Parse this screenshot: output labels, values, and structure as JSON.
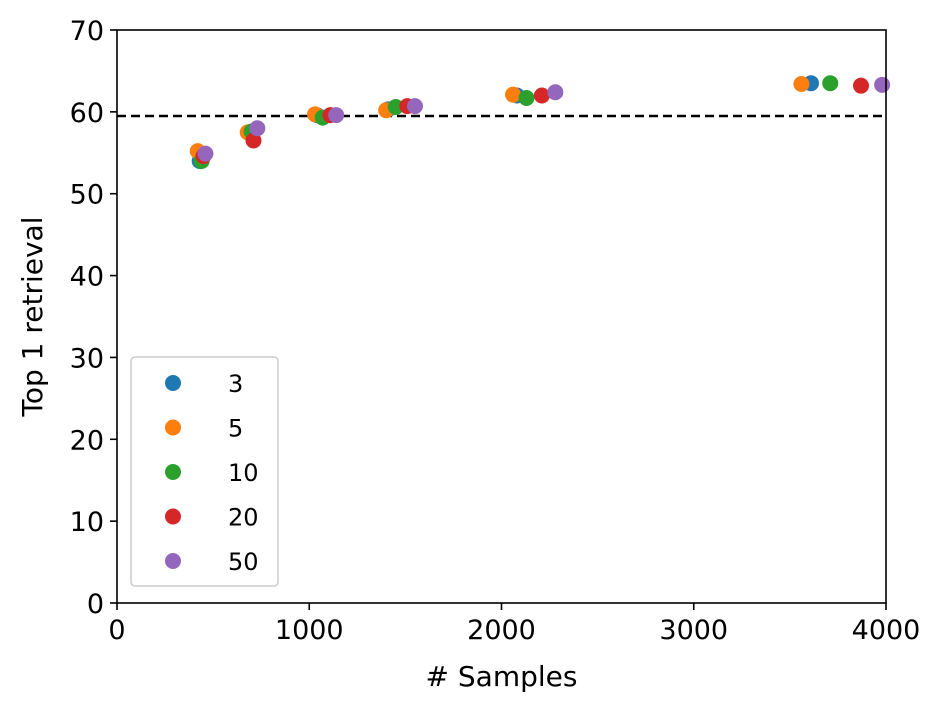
{
  "chart_data": {
    "type": "scatter",
    "xlabel": "# Samples",
    "ylabel": "Top 1 retrieval",
    "xlim": [
      0,
      4000
    ],
    "ylim": [
      0,
      70
    ],
    "xticks": [
      0,
      1000,
      2000,
      3000,
      4000
    ],
    "yticks": [
      0,
      10,
      20,
      30,
      40,
      50,
      60,
      70
    ],
    "grid": false,
    "legend_position": "lower-left",
    "reference_line": {
      "y": 59.5,
      "style": "dashed",
      "color": "#000000"
    },
    "series": [
      {
        "name": "3",
        "color": "#1f77b4",
        "points": [
          [
            430,
            54.0
          ],
          [
            690,
            57.4
          ],
          [
            1040,
            59.6
          ],
          [
            1410,
            60.3
          ],
          [
            2080,
            62.0
          ],
          [
            3610,
            63.5
          ]
        ]
      },
      {
        "name": "5",
        "color": "#ff7f0e",
        "points": [
          [
            420,
            55.2
          ],
          [
            680,
            57.5
          ],
          [
            1030,
            59.7
          ],
          [
            1400,
            60.2
          ],
          [
            2060,
            62.1
          ],
          [
            3560,
            63.4
          ]
        ]
      },
      {
        "name": "10",
        "color": "#2ca02c",
        "points": [
          [
            440,
            54.0
          ],
          [
            700,
            57.6
          ],
          [
            1070,
            59.3
          ],
          [
            1450,
            60.6
          ],
          [
            2130,
            61.7
          ],
          [
            3710,
            63.5
          ]
        ]
      },
      {
        "name": "20",
        "color": "#d62728",
        "points": [
          [
            450,
            54.6
          ],
          [
            710,
            56.5
          ],
          [
            1110,
            59.6
          ],
          [
            1510,
            60.7
          ],
          [
            2210,
            62.0
          ],
          [
            3870,
            63.2
          ]
        ]
      },
      {
        "name": "50",
        "color": "#9467bd",
        "points": [
          [
            460,
            54.9
          ],
          [
            730,
            58.0
          ],
          [
            1140,
            59.6
          ],
          [
            1550,
            60.7
          ],
          [
            2280,
            62.4
          ],
          [
            3980,
            63.3
          ]
        ]
      }
    ]
  }
}
